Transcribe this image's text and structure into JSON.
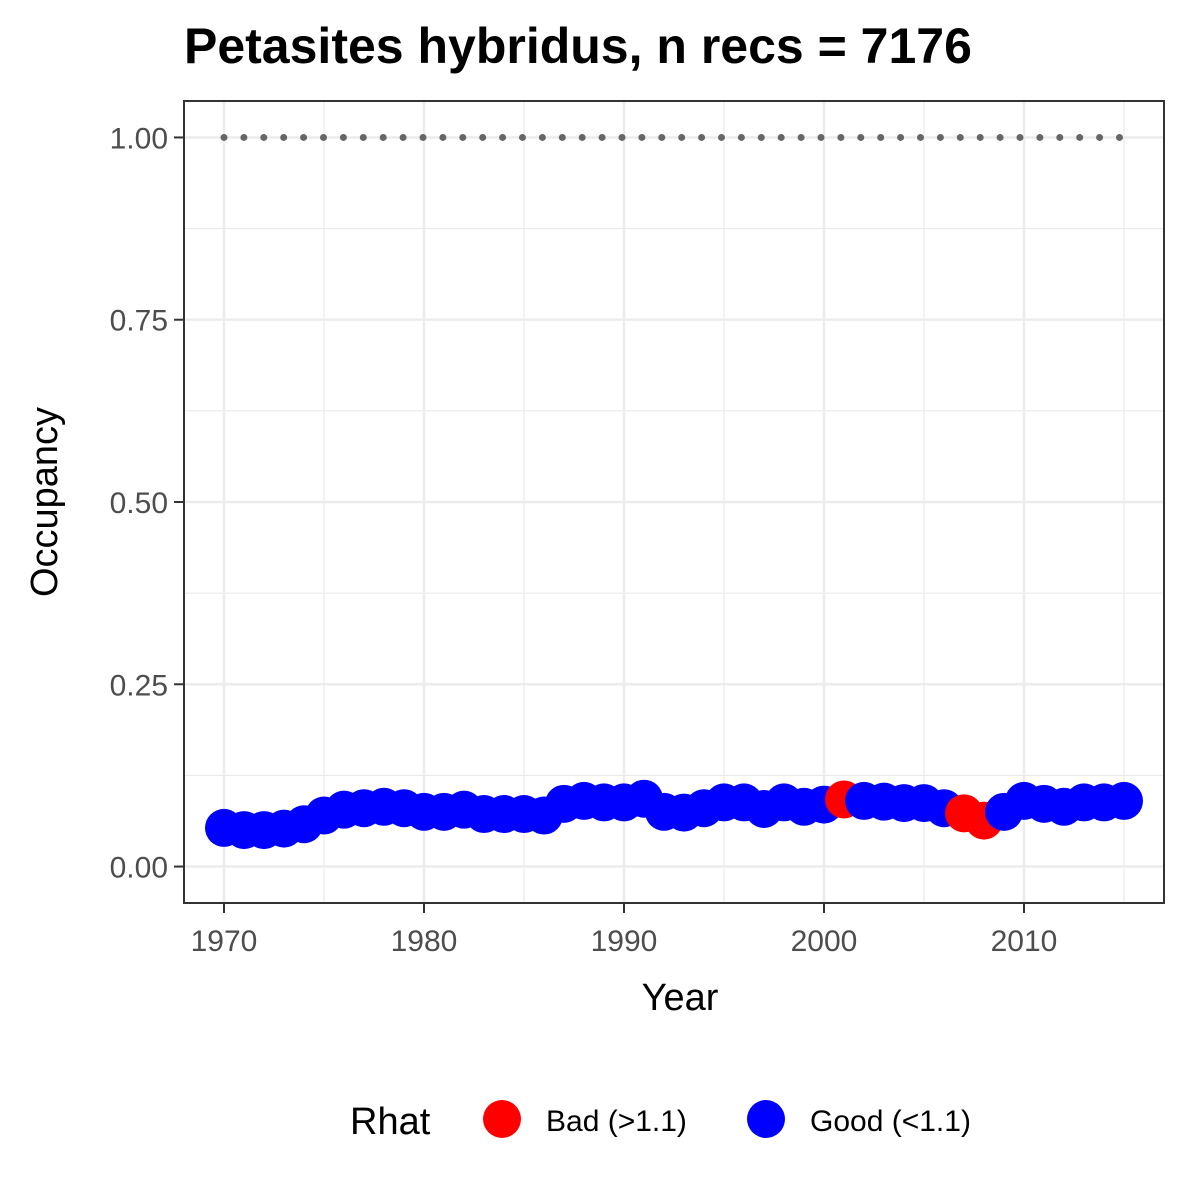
{
  "chart_data": {
    "type": "scatter",
    "title": "Petasites hybridus, n recs = 7176",
    "xlabel": "Year",
    "ylabel": "Occupancy",
    "xlim": [
      1968,
      2017
    ],
    "ylim": [
      -0.05,
      1.05
    ],
    "x_ticks": [
      1970,
      1980,
      1990,
      2000,
      2010
    ],
    "x_tick_labels": [
      "1970",
      "1980",
      "1990",
      "2000",
      "2010"
    ],
    "y_ticks": [
      0,
      0.25,
      0.5,
      0.75,
      1.0
    ],
    "y_tick_labels": [
      "0.00",
      "0.25",
      "0.50",
      "0.75",
      "1.00"
    ],
    "grid": true,
    "legend": {
      "title": "Rhat",
      "placement": "bottom",
      "entries": [
        {
          "label": "Bad (>1.1)",
          "color": "#ff0000"
        },
        {
          "label": "Good (<1.1)",
          "color": "#0000ff"
        }
      ]
    },
    "reference_line": {
      "y": 1.0,
      "x_start": 1970,
      "x_end": 2015,
      "style": "dotted",
      "color": "#666666"
    },
    "series": [
      {
        "name": "Occupancy",
        "x": [
          1970,
          1971,
          1972,
          1973,
          1974,
          1975,
          1976,
          1977,
          1978,
          1979,
          1980,
          1981,
          1982,
          1983,
          1984,
          1985,
          1986,
          1987,
          1988,
          1989,
          1990,
          1991,
          1992,
          1993,
          1994,
          1995,
          1996,
          1997,
          1998,
          1999,
          2000,
          2001,
          2002,
          2003,
          2004,
          2005,
          2006,
          2007,
          2008,
          2009,
          2010,
          2011,
          2012,
          2013,
          2014,
          2015
        ],
        "y": [
          0.053,
          0.05,
          0.05,
          0.052,
          0.058,
          0.07,
          0.078,
          0.08,
          0.082,
          0.08,
          0.075,
          0.075,
          0.078,
          0.072,
          0.072,
          0.072,
          0.07,
          0.086,
          0.09,
          0.088,
          0.088,
          0.093,
          0.075,
          0.074,
          0.08,
          0.088,
          0.088,
          0.079,
          0.088,
          0.082,
          0.085,
          0.092,
          0.09,
          0.089,
          0.087,
          0.087,
          0.08,
          0.073,
          0.063,
          0.075,
          0.09,
          0.086,
          0.082,
          0.088,
          0.088,
          0.09
        ],
        "rhat": [
          "Good",
          "Good",
          "Good",
          "Good",
          "Good",
          "Good",
          "Good",
          "Good",
          "Good",
          "Good",
          "Good",
          "Good",
          "Good",
          "Good",
          "Good",
          "Good",
          "Good",
          "Good",
          "Good",
          "Good",
          "Good",
          "Good",
          "Good",
          "Good",
          "Good",
          "Good",
          "Good",
          "Good",
          "Good",
          "Good",
          "Good",
          "Bad",
          "Good",
          "Good",
          "Good",
          "Good",
          "Good",
          "Bad",
          "Bad",
          "Good",
          "Good",
          "Good",
          "Good",
          "Good",
          "Good",
          "Good"
        ]
      }
    ],
    "colors": {
      "Bad": "#ff0000",
      "Good": "#0000ff",
      "reference": "#666666",
      "grid": "#ebebeb",
      "panel_border": "#333333"
    }
  }
}
